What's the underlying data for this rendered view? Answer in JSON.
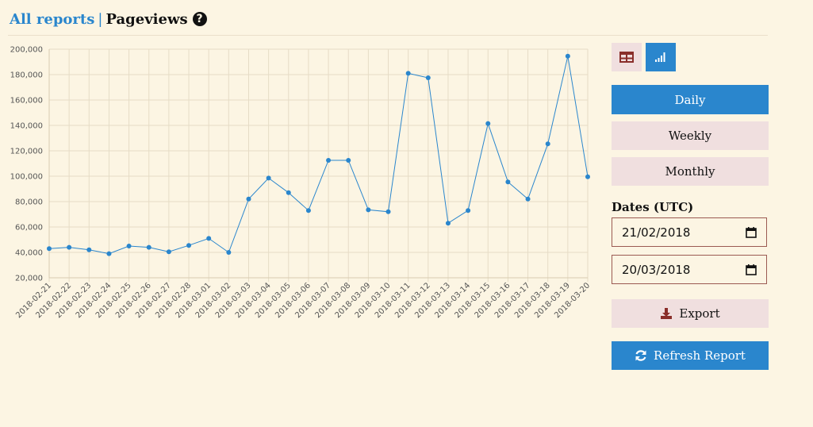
{
  "header": {
    "breadcrumb_link": "All reports",
    "separator": "|",
    "title": "Pageviews",
    "help_glyph": "?"
  },
  "view_toggle": {
    "table_icon": "table-icon",
    "chart_icon": "bar-chart-icon",
    "active": "chart"
  },
  "period_buttons": {
    "daily": "Daily",
    "weekly": "Weekly",
    "monthly": "Monthly",
    "active": "daily"
  },
  "dates": {
    "label": "Dates (UTC)",
    "start": "21/02/2018",
    "end": "20/03/2018"
  },
  "actions": {
    "export": "Export",
    "refresh": "Refresh Report"
  },
  "colors": {
    "accent": "#2a86cd",
    "secondary_button": "#f0dfdf",
    "background": "#fcf5e3",
    "date_border": "#9b5a52"
  },
  "chart_data": {
    "type": "line",
    "x": [
      "2018-02-21",
      "2018-02-22",
      "2018-02-23",
      "2018-02-24",
      "2018-02-25",
      "2018-02-26",
      "2018-02-27",
      "2018-02-28",
      "2018-03-01",
      "2018-03-02",
      "2018-03-03",
      "2018-03-04",
      "2018-03-05",
      "2018-03-06",
      "2018-03-07",
      "2018-03-08",
      "2018-03-09",
      "2018-03-10",
      "2018-03-11",
      "2018-03-12",
      "2018-03-13",
      "2018-03-14",
      "2018-03-15",
      "2018-03-16",
      "2018-03-17",
      "2018-03-18",
      "2018-03-19",
      "2018-03-20"
    ],
    "series": [
      {
        "values": [
          43000,
          44000,
          42000,
          39000,
          45000,
          44000,
          40500,
          45500,
          51000,
          40000,
          82000,
          98500,
          87000,
          73000,
          112500,
          112500,
          73500,
          72000,
          181000,
          177500,
          63000,
          73000,
          141500,
          95500,
          82000,
          125500,
          194500,
          99500
        ]
      }
    ],
    "yticks": [
      "20,000",
      "40,000",
      "60,000",
      "80,000",
      "100,000",
      "120,000",
      "140,000",
      "160,000",
      "180,000",
      "200,000"
    ],
    "ylim": [
      20000,
      200000
    ],
    "grid": true,
    "line_color": "#2a86cd"
  }
}
